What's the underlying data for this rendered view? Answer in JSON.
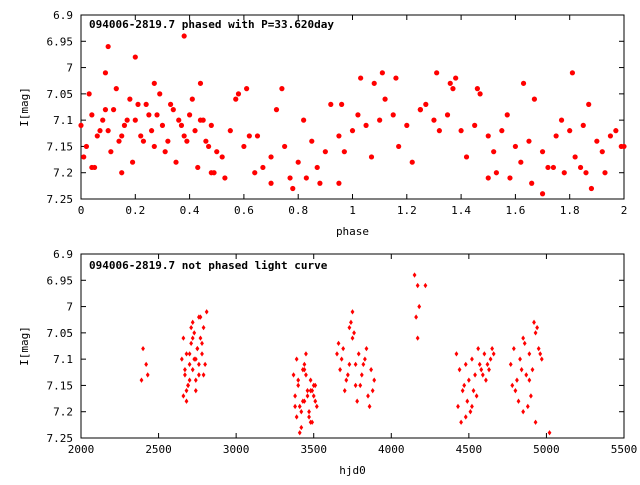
{
  "chart_data": [
    {
      "type": "scatter",
      "title": "094006-2819.7 phased with P=33.620day",
      "xlabel": "phase",
      "ylabel": "I[mag]",
      "xlim": [
        0,
        2
      ],
      "ylim": [
        6.9,
        7.25
      ],
      "y_inverted": true,
      "x_ticks": [
        "0",
        "0.2",
        "0.4",
        "0.6",
        "0.8",
        "1",
        "1.2",
        "1.4",
        "1.6",
        "1.8",
        "2"
      ],
      "y_ticks": [
        "6.9",
        "6.95",
        "7",
        "7.05",
        "7.1",
        "7.15",
        "7.2",
        "7.25"
      ],
      "marker_color": "#ff0000",
      "marker": "filled-circle",
      "series": [
        {
          "name": "phased",
          "x": [
            0.0,
            0.02,
            0.04,
            0.06,
            0.08,
            0.1,
            0.12,
            0.14,
            0.16,
            0.18,
            0.2,
            0.22,
            0.24,
            0.26,
            0.28,
            0.3,
            0.32,
            0.34,
            0.36,
            0.38,
            0.4,
            0.42,
            0.44,
            0.46,
            0.48,
            0.5,
            0.55,
            0.6,
            0.65,
            0.7,
            0.75,
            0.8,
            0.85,
            0.9,
            0.95,
            1.0,
            1.05,
            1.1,
            1.15,
            1.2,
            1.25,
            1.3,
            1.35,
            1.4,
            1.45,
            1.5,
            1.55,
            1.6,
            1.65,
            1.7,
            1.75,
            1.8,
            1.85,
            1.9,
            1.95,
            2.0,
            0.01,
            0.03,
            0.05,
            0.07,
            0.09,
            0.11,
            0.13,
            0.15,
            0.17,
            0.19,
            0.21,
            0.23,
            0.25,
            0.27,
            0.29,
            0.31,
            0.33,
            0.35,
            0.37,
            0.39,
            0.41,
            0.43,
            0.45,
            0.47,
            0.49,
            0.52,
            0.57,
            0.62,
            0.67,
            0.72,
            0.77,
            0.82,
            0.87,
            0.92,
            0.97,
            1.02,
            1.07,
            1.12,
            1.17,
            1.22,
            1.27,
            1.32,
            1.37,
            1.42,
            1.47,
            1.52,
            1.57,
            1.62,
            1.67,
            1.72,
            1.77,
            1.82,
            1.87,
            1.92,
            1.97,
            0.1,
            0.38,
            0.2,
            0.09,
            0.48,
            0.53,
            0.64,
            0.7,
            0.78,
            0.83,
            0.96,
            1.08,
            1.11,
            1.16,
            1.31,
            1.36,
            1.5,
            1.53,
            1.66,
            1.7,
            1.78,
            1.81,
            1.84,
            1.88,
            1.99,
            0.04,
            0.15,
            0.44,
            0.58,
            0.74,
            0.88,
            1.03,
            1.25,
            1.46,
            1.58,
            1.74,
            1.93,
            0.27,
            0.61,
            0.95,
            1.38,
            1.63,
            1.86
          ],
          "y": [
            7.11,
            7.15,
            7.09,
            7.13,
            7.1,
            7.12,
            7.08,
            7.14,
            7.11,
            7.06,
            7.1,
            7.13,
            7.07,
            7.12,
            7.09,
            7.11,
            7.14,
            7.08,
            7.1,
            7.13,
            7.09,
            7.12,
            7.1,
            7.14,
            7.11,
            7.16,
            7.12,
            7.15,
            7.13,
            7.17,
            7.15,
            7.18,
            7.14,
            7.16,
            7.13,
            7.12,
            7.11,
            7.1,
            7.09,
            7.11,
            7.08,
            7.1,
            7.09,
            7.12,
            7.11,
            7.13,
            7.12,
            7.15,
            7.14,
            7.16,
            7.13,
            7.12,
            7.11,
            7.14,
            7.13,
            7.15,
            7.17,
            7.05,
            7.19,
            7.12,
            7.08,
            7.16,
            7.04,
            7.13,
            7.1,
            7.18,
            7.07,
            7.14,
            7.09,
            7.15,
            7.05,
            7.16,
            7.07,
            7.18,
            7.11,
            7.14,
            7.06,
            7.19,
            7.1,
            7.15,
            7.2,
            7.17,
            7.06,
            7.13,
            7.19,
            7.08,
            7.21,
            7.1,
            7.19,
            7.07,
            7.16,
            7.09,
            7.17,
            7.06,
            7.15,
            7.18,
            7.07,
            7.12,
            7.04,
            7.17,
            7.05,
            7.16,
            7.09,
            7.18,
            7.06,
            7.19,
            7.1,
            7.17,
            7.07,
            7.16,
            7.12,
            6.96,
            6.94,
            6.98,
            7.01,
            7.2,
            7.21,
            7.2,
            7.22,
            7.23,
            7.21,
            7.07,
            7.03,
            7.01,
            7.02,
            7.01,
            7.03,
            7.21,
            7.2,
            7.22,
            7.24,
            7.2,
            7.01,
            7.19,
            7.23,
            7.15,
            7.19,
            7.2,
            7.03,
            7.05,
            7.04,
            7.22,
            7.02,
            7.08,
            7.04,
            7.21,
            7.19,
            7.2,
            7.03,
            7.04,
            7.22,
            7.02,
            7.03,
            7.2
          ]
        }
      ]
    },
    {
      "type": "scatter",
      "title": "094006-2819.7 not phased light curve",
      "xlabel": "hjd0",
      "ylabel": "I[mag]",
      "xlim": [
        2000,
        5500
      ],
      "ylim": [
        6.9,
        7.25
      ],
      "y_inverted": true,
      "x_ticks": [
        "2000",
        "2500",
        "3000",
        "3500",
        "4000",
        "4500",
        "5000",
        "5500"
      ],
      "y_ticks": [
        "6.9",
        "6.95",
        "7",
        "7.05",
        "7.1",
        "7.15",
        "7.2",
        "7.25"
      ],
      "marker_color": "#ff0000",
      "marker": "small-diamond",
      "series": [
        {
          "name": "light curve",
          "x": [
            2390,
            2400,
            2420,
            2430,
            2650,
            2660,
            2670,
            2680,
            2690,
            2700,
            2710,
            2720,
            2730,
            2740,
            2750,
            2760,
            2770,
            2780,
            2790,
            2800,
            2660,
            2680,
            2700,
            2720,
            2740,
            2760,
            2780,
            2670,
            2690,
            2710,
            2730,
            2750,
            2770,
            2790,
            2810,
            2680,
            2700,
            2720,
            2740,
            2760,
            3370,
            3380,
            3390,
            3400,
            3410,
            3420,
            3430,
            3440,
            3450,
            3460,
            3470,
            3480,
            3490,
            3500,
            3510,
            3520,
            3390,
            3410,
            3430,
            3450,
            3470,
            3490,
            3510,
            3400,
            3420,
            3440,
            3460,
            3480,
            3500,
            3380,
            3440,
            3480,
            3650,
            3670,
            3690,
            3710,
            3730,
            3750,
            3770,
            3790,
            3810,
            3830,
            3850,
            3870,
            3890,
            3660,
            3700,
            3740,
            3780,
            3820,
            3860,
            3680,
            3720,
            3760,
            3800,
            3840,
            3880,
            3750,
            3730,
            3770,
            4150,
            4170,
            4160,
            4180,
            4220,
            4170,
            4420,
            4440,
            4460,
            4480,
            4500,
            4520,
            4540,
            4560,
            4580,
            4600,
            4620,
            4640,
            4660,
            4430,
            4470,
            4510,
            4550,
            4590,
            4630,
            4450,
            4490,
            4530,
            4570,
            4610,
            4650,
            4480,
            4520,
            4770,
            4790,
            4810,
            4830,
            4850,
            4870,
            4890,
            4910,
            4930,
            4950,
            4970,
            4780,
            4820,
            4860,
            4900,
            4940,
            4800,
            4840,
            4880,
            4920,
            4960,
            4850,
            4890,
            4930,
            5020
          ],
          "y": [
            7.14,
            7.08,
            7.11,
            7.13,
            7.1,
            7.06,
            7.13,
            7.09,
            7.15,
            7.11,
            7.07,
            7.12,
            7.05,
            7.1,
            7.08,
            7.13,
            7.06,
            7.09,
            7.04,
            7.11,
            7.17,
            7.18,
            7.14,
            7.03,
            7.16,
            7.02,
            7.07,
            7.12,
            7.15,
            7.04,
            7.1,
            7.08,
            7.02,
            7.13,
            7.01,
            7.16,
            7.09,
            7.06,
            7.14,
            7.11,
            7.13,
            7.17,
            7.21,
            7.15,
            7.19,
            7.23,
            7.12,
            7.18,
            7.09,
            7.16,
            7.2,
            7.14,
            7.22,
            7.17,
            7.15,
            7.19,
            7.1,
            7.24,
            7.18,
            7.13,
            7.21,
            7.16,
            7.18,
            7.14,
            7.2,
            7.11,
            7.17,
            7.22,
            7.15,
            7.19,
            7.12,
            7.16,
            7.09,
            7.12,
            7.08,
            7.14,
            7.11,
            7.06,
            7.15,
            7.09,
            7.13,
            7.1,
            7.17,
            7.12,
            7.14,
            7.07,
            7.16,
            7.03,
            7.18,
            7.11,
            7.19,
            7.1,
            7.13,
            7.05,
            7.15,
            7.08,
            7.16,
            7.01,
            7.04,
            7.11,
            6.94,
            6.96,
            7.02,
            7.0,
            6.96,
            7.06,
            7.09,
            7.12,
            7.16,
            7.11,
            7.14,
            7.1,
            7.13,
            7.08,
            7.12,
            7.09,
            7.11,
            7.1,
            7.09,
            7.19,
            7.15,
            7.2,
            7.17,
            7.13,
            7.12,
            7.22,
            7.18,
            7.16,
            7.11,
            7.14,
            7.08,
            7.21,
            7.19,
            7.11,
            7.08,
            7.14,
            7.1,
            7.06,
            7.13,
            7.09,
            7.12,
            7.05,
            7.08,
            7.1,
            7.15,
            7.18,
            7.07,
            7.17,
            7.04,
            7.16,
            7.12,
            7.19,
            7.03,
            7.09,
            7.2,
            7.14,
            7.22,
            7.24
          ]
        }
      ]
    }
  ]
}
